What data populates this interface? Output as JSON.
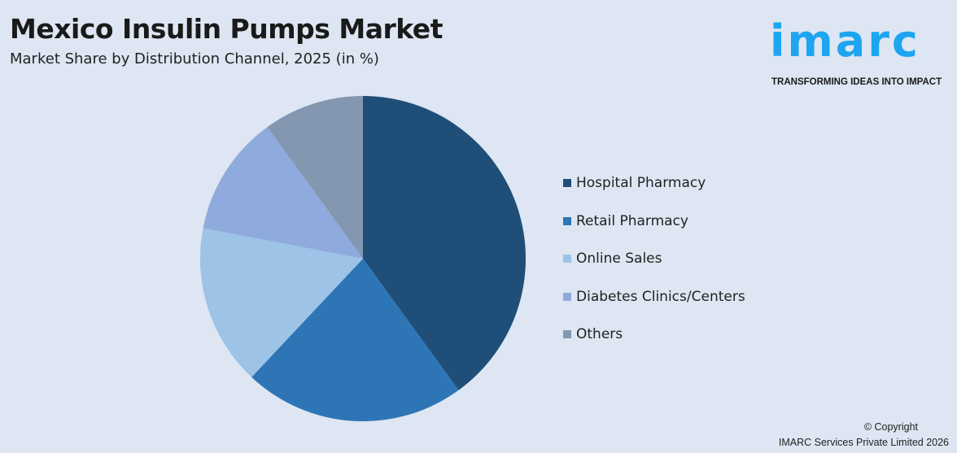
{
  "header": {
    "title": "Mexico Insulin Pumps Market",
    "subtitle": "Market Share by Distribution Channel, 2025 (in %)"
  },
  "logo": {
    "word": "imarc",
    "tagline": "TRANSFORMING IDEAS INTO IMPACT",
    "color": "#1ea5f0"
  },
  "footer": {
    "copyright": "© Copyright",
    "company": "IMARC Services Private Limited 2026"
  },
  "chart_data": {
    "type": "pie",
    "title": "Mexico Insulin Pumps Market",
    "subtitle": "Market Share by Distribution Channel, 2025 (in %)",
    "legend_position": "right",
    "start_angle": "12 o'clock, clockwise",
    "categories": [
      "Hospital Pharmacy",
      "Retail Pharmacy",
      "Online Sales",
      "Diabetes Clinics/Centers",
      "Others"
    ],
    "values": [
      40,
      22,
      16,
      12,
      10
    ],
    "colors": [
      "#1f4e79",
      "#2e75b6",
      "#9dc3e6",
      "#8faadc",
      "#8497b0"
    ]
  }
}
